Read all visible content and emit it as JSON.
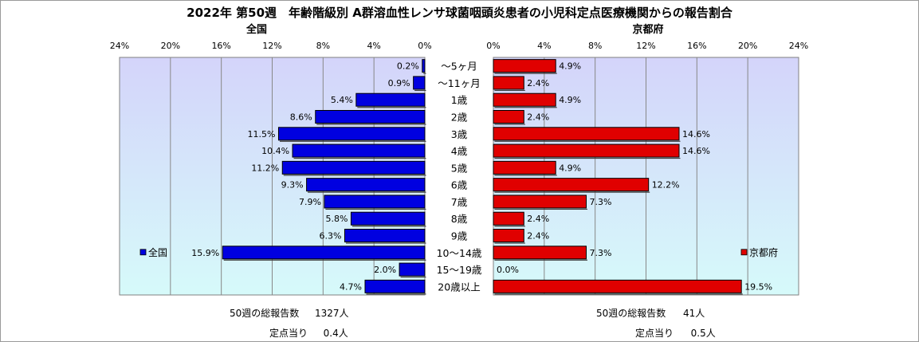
{
  "title": "2022年 第50週　年齢階級別 A群溶血性レンサ球菌咽頭炎患者の小児科定点医療機関からの報告割合",
  "chart_data": {
    "type": "bar",
    "orientation": "horizontal-butterfly",
    "categories": [
      "～5ヶ月",
      "～11ヶ月",
      "1歳",
      "2歳",
      "3歳",
      "4歳",
      "5歳",
      "6歳",
      "7歳",
      "8歳",
      "9歳",
      "10～14歳",
      "15～19歳",
      "20歳以上"
    ],
    "xticks": [
      "24%",
      "20%",
      "16%",
      "12%",
      "8%",
      "4%",
      "0%"
    ],
    "xticks_right": [
      "0%",
      "4%",
      "8%",
      "12%",
      "16%",
      "20%",
      "24%"
    ],
    "xlim": [
      0,
      24
    ],
    "series": [
      {
        "name": "全国",
        "side": "left",
        "color": "#0000e0",
        "values": [
          0.2,
          0.9,
          5.4,
          8.6,
          11.5,
          10.4,
          11.2,
          9.3,
          7.9,
          5.8,
          6.3,
          15.9,
          2.0,
          4.7
        ],
        "labels": [
          "0.2%",
          "0.9%",
          "5.4%",
          "8.6%",
          "11.5%",
          "10.4%",
          "11.2%",
          "9.3%",
          "7.9%",
          "5.8%",
          "6.3%",
          "15.9%",
          "2.0%",
          "4.7%"
        ]
      },
      {
        "name": "京都府",
        "side": "right",
        "color": "#e00000",
        "values": [
          4.9,
          2.4,
          4.9,
          2.4,
          14.6,
          14.6,
          4.9,
          12.2,
          7.3,
          2.4,
          2.4,
          7.3,
          0.0,
          19.5
        ],
        "labels": [
          "4.9%",
          "2.4%",
          "4.9%",
          "2.4%",
          "14.6%",
          "14.6%",
          "4.9%",
          "12.2%",
          "7.3%",
          "2.4%",
          "2.4%",
          "7.3%",
          "0.0%",
          "19.5%"
        ]
      }
    ],
    "grid": true,
    "legend": "inside, left panel row 10～14歳 and right panel row 10～14歳",
    "colors": {
      "plot_bg_top": "#d4d4fa",
      "plot_bg_bottom": "#d6fafa",
      "grid": "#888888"
    }
  },
  "footer": {
    "left": {
      "total_label": "50週の総報告数",
      "total_value": "1327人",
      "per_label": "定点当り",
      "per_value": "0.4人"
    },
    "right": {
      "total_label": "50週の総報告数",
      "total_value": "41人",
      "per_label": "定点当り",
      "per_value": "0.5人"
    }
  }
}
